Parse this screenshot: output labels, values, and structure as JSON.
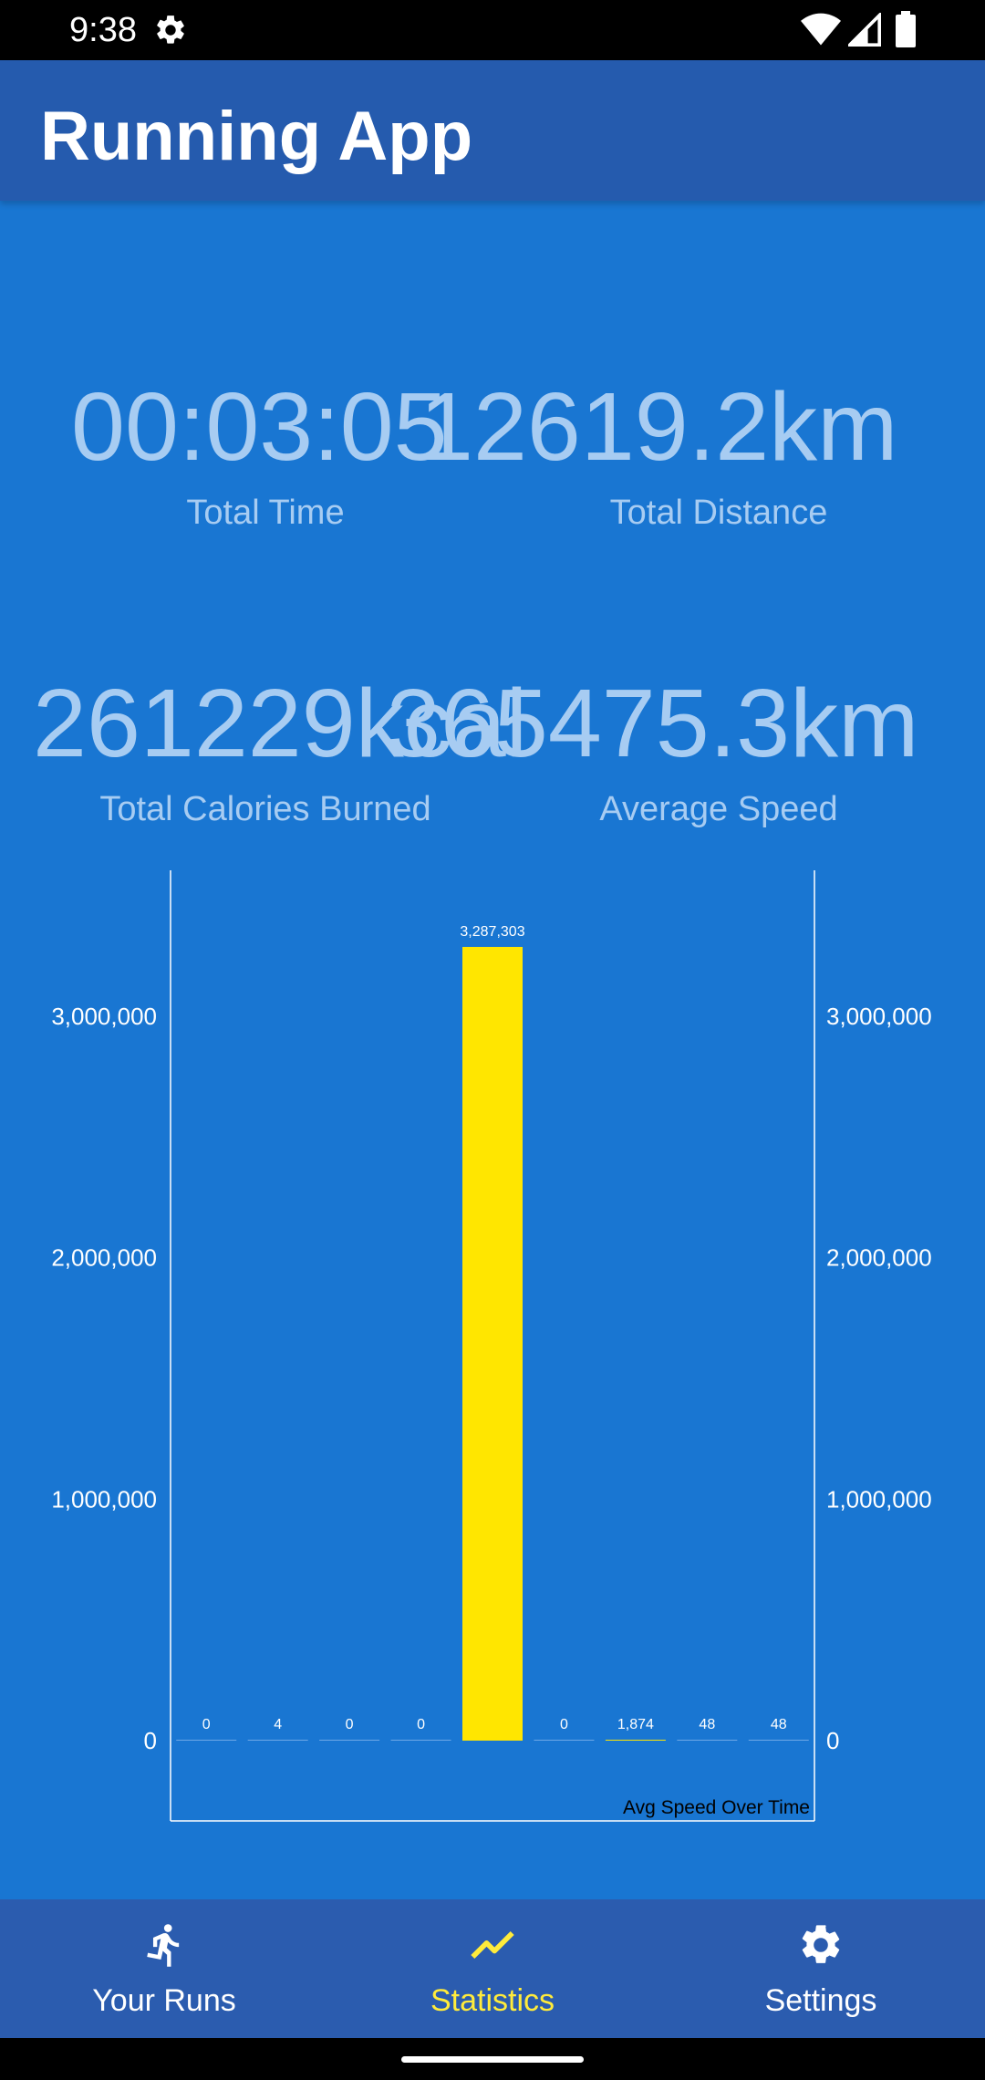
{
  "status_bar": {
    "time": "9:38"
  },
  "app_bar": {
    "title": "Running App"
  },
  "stats": {
    "total_time": {
      "value": "00:03:05",
      "label": "Total Time"
    },
    "total_distance": {
      "value": "12619.2km",
      "label": "Total Distance"
    },
    "total_calories": {
      "value": "261229kcal",
      "label": "Total Calories Burned"
    },
    "average_speed": {
      "value": "365475.3km",
      "label": "Average Speed"
    }
  },
  "chart_data": {
    "type": "bar",
    "title": "Avg Speed Over Time",
    "categories": [
      "",
      "",
      "",
      "",
      "",
      "",
      "",
      "",
      ""
    ],
    "values": [
      0,
      4,
      0,
      0,
      3287303,
      0,
      1874,
      48,
      48
    ],
    "value_labels": [
      "0",
      "4",
      "0",
      "0",
      "3,287,303",
      "0",
      "1,874",
      "48",
      "48"
    ],
    "ylim": [
      0,
      3300000
    ],
    "yticks": [
      0,
      1000000,
      2000000,
      3000000
    ],
    "ytick_labels": [
      "0",
      "1,000,000",
      "2,000,000",
      "3,000,000"
    ],
    "bar_color": "#FFE600",
    "grid": false,
    "axes": "left-and-right"
  },
  "bottom_nav": {
    "items": [
      {
        "label": "Your Runs",
        "icon": "running-icon",
        "active": false
      },
      {
        "label": "Statistics",
        "icon": "trending-up-icon",
        "active": true
      },
      {
        "label": "Settings",
        "icon": "gear-icon",
        "active": false
      }
    ]
  },
  "colors": {
    "background": "#1976D2",
    "app_bar": "#255BAE",
    "stat_text": "#A7CCF2",
    "active_nav": "#FFEB3B",
    "bar": "#FFE600"
  }
}
